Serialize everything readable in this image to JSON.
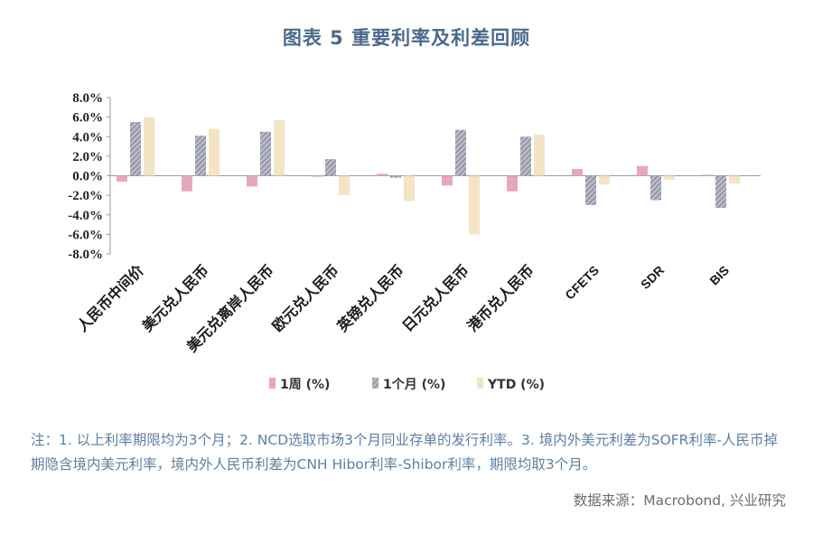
{
  "title": "图表 5 重要利率及利差回顾",
  "note": "注：1. 以上利率期限均为3个月；2. NCD选取市场3个月同业存单的发行利率。3. 境内外美元利差为SOFR利率-人民币掉期隐含境内美元利率，境内外人民币利差为CNH Hibor利率-Shibor利率，期限均取3个月。",
  "source": "数据来源：Macrobond, 兴业研究",
  "colors": {
    "1周 (%)": "#e7a7bb",
    "1个月 (%)": "#8e8fa3",
    "YTD (%)": "#f2e4c4"
  },
  "chart_data": {
    "type": "bar",
    "categories": [
      "人民币中间价",
      "美元兑人民币",
      "美元兑离岸人民币",
      "欧元兑人民币",
      "英镑兑人民币",
      "日元兑人民币",
      "港币兑人民币",
      "CFETS",
      "SDR",
      "BIS"
    ],
    "series": [
      {
        "name": "1周 (%)",
        "values": [
          -0.6,
          -1.6,
          -1.1,
          -0.1,
          0.2,
          -1.0,
          -1.6,
          0.7,
          1.0,
          0.1
        ]
      },
      {
        "name": "1个月 (%)",
        "values": [
          5.5,
          4.1,
          4.5,
          1.7,
          -0.2,
          4.7,
          4.0,
          -3.0,
          -2.5,
          -3.3
        ]
      },
      {
        "name": "YTD (%)",
        "values": [
          6.0,
          4.8,
          5.7,
          -2.0,
          -2.6,
          -6.0,
          4.2,
          -0.9,
          -0.4,
          -0.8
        ]
      }
    ],
    "yticks": [
      "8.0%",
      "6.0%",
      "4.0%",
      "2.0%",
      "0.0%",
      "-2.0%",
      "-4.0%",
      "-6.0%",
      "-8.0%"
    ],
    "ylim": [
      -8,
      8
    ],
    "legend_position": "bottom"
  }
}
